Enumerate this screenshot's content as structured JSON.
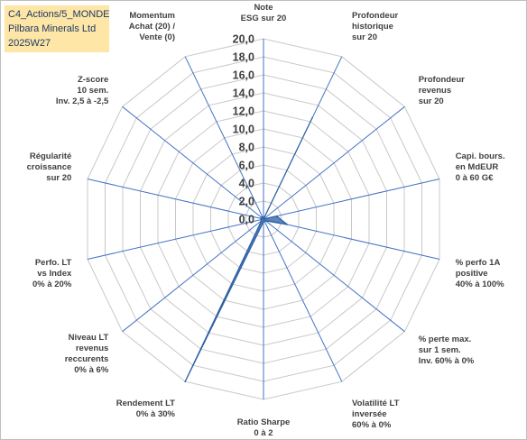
{
  "header": {
    "line1": "C4_Actions/5_MONDE",
    "line2": "Pilbara Minerals Ltd",
    "line3": "2025W27"
  },
  "chart_data": {
    "type": "radar",
    "title": "",
    "r_range": [
      0,
      20
    ],
    "tick_step": 2,
    "tick_labels": [
      "0,0",
      "2,0",
      "4,0",
      "6,0",
      "8,0",
      "10,0",
      "12,0",
      "14,0",
      "16,0",
      "18,0",
      "20,0"
    ],
    "grid": true,
    "axes": [
      {
        "label": [
          "Note",
          "ESG sur 20"
        ]
      },
      {
        "label": [
          "Profondeur",
          "historique",
          "sur 20"
        ]
      },
      {
        "label": [
          "Profondeur",
          "revenus",
          "sur 20"
        ]
      },
      {
        "label": [
          "Capi. bours.",
          "en MdEUR",
          "0 à 60 G€"
        ]
      },
      {
        "label": [
          "% perfo 1A",
          "positive",
          "40% à 100%"
        ]
      },
      {
        "label": [
          "% perte max.",
          "sur 1 sem.",
          "Inv. 60% à 0%"
        ]
      },
      {
        "label": [
          "Volatilité LT",
          "inversée",
          "60% à 0%"
        ]
      },
      {
        "label": [
          "Ratio Sharpe",
          "0 à 2"
        ]
      },
      {
        "label": [
          "Rendement LT",
          "0% à 30%"
        ]
      },
      {
        "label": [
          "Niveau LT",
          "revenus",
          "reccurents",
          "0% à 6%"
        ]
      },
      {
        "label": [
          "Perfo. LT",
          "vs Index",
          "0% à 20%"
        ]
      },
      {
        "label": [
          "Régularité",
          "croissance",
          "sur 20"
        ]
      },
      {
        "label": [
          "Z-score",
          "10 sem.",
          "Inv. 2,5 à -2,5"
        ]
      },
      {
        "label": [
          "Momentum",
          "Achat (20) /",
          "Vente (0)"
        ]
      }
    ],
    "series": [
      {
        "values": [
          0,
          12.5,
          0,
          1.5,
          2.7,
          0.3,
          0.3,
          0.3,
          20,
          0.3,
          0.3,
          0.3,
          0.3,
          0.3
        ]
      }
    ],
    "colors": {
      "fill": "#4a78b8",
      "line": "#2e5fa3",
      "grid": "#c8c8c8",
      "spoke": "#4472c4"
    }
  }
}
